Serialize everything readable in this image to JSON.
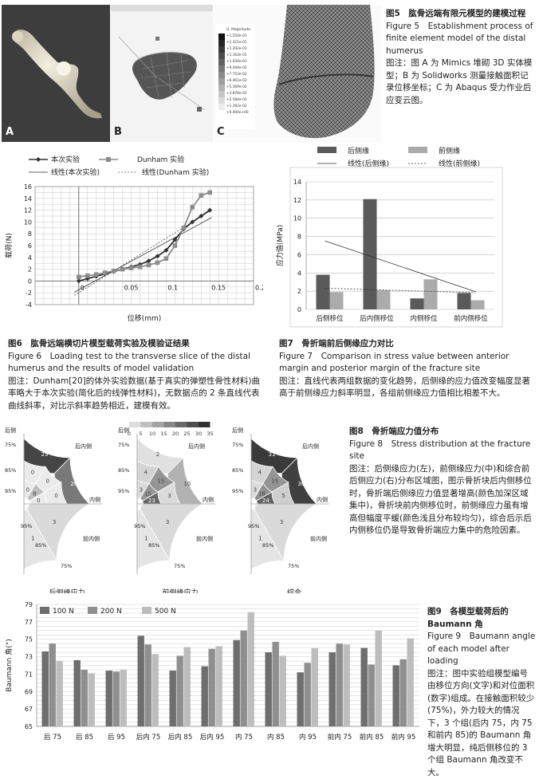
{
  "fig5": {
    "panel_labels": [
      "A",
      "B",
      "C"
    ],
    "caption_cn": "图5　肱骨远端有限元模型的建模过程",
    "caption_en": "Figure 5　Establishment process of finite element model of the distal humerus",
    "note": "图注：图 A 为 Mimics 堆砌 3D 实体模型；B 为 Solidworks 测量接触面积记录位移坐标；C 为 Abaqus 受力作业后应变云图。",
    "colorbar_title": "U, Magnitude",
    "colorbar_values": [
      "+1.550e-01",
      "+1.421e-01",
      "+1.292e-01",
      "+1.163e-01",
      "+1.034e-01",
      "+9.044e-02",
      "+7.753e-02",
      "+6.461e-02",
      "+5.169e-02",
      "+3.876e-02",
      "+2.584e-02",
      "+1.292e-02",
      "+0.000e+00"
    ]
  },
  "fig6": {
    "caption_cn": "图6　肱骨远端横切片模型载荷实验及模验证结果",
    "caption_en": "Figure 6　Loading test to the transverse slice of the distal humerus and the results of model validation",
    "note": "图注：Dunham[20]的体外实验数据(基于真实的弹塑性骨性材料)曲率略大于本次实验(简化后的线弹性材料)，无数据点的 2 条直线代表曲线斜率，对比示斜率趋势相近，建模有效。"
  },
  "fig7": {
    "caption_cn": "图7　骨折端前后侧缘应力对比",
    "caption_en": "Figure 7　Comparison in stress value between anterior margin and posterior margin of the fracture site",
    "note": "图注：直线代表两组数据的变化趋势，后侧缘的应力值改变幅度显著高于前侧缘应力斜率明显，各组前侧缘应力值相比相差不大。"
  },
  "fig8": {
    "caption_cn": "图8　骨折端应力值分布",
    "caption_en": "Figure 8　Stress distribution at the fracture site",
    "note": "图注：后侧缘应力(左)，前侧缘应力(中)和综合前后侧应力(右)分布区域图，图示骨折块后内侧移位时，骨折端后侧缘应力值显著增高(颜色加深区域集中)，骨折块前内侧移位时，前侧缘应力虽有增高但幅度平缓(颜色浅且分布较均匀)，综合后示后内侧移位仍是导致骨折端应力集中的危险因素。",
    "scale": [
      "0",
      "5",
      "10",
      "15",
      "20",
      "25",
      "30",
      "35"
    ],
    "edge_labels": {
      "back": "后侧",
      "back_inner": "后内侧",
      "inner": "内侧",
      "front_inner": "前内侧",
      "p75": "75%",
      "p85": "85%",
      "p95": "95%"
    },
    "panels": [
      {
        "title": "后侧缘应力",
        "outer": [
          "29",
          "20"
        ],
        "mid": [
          "0",
          "0",
          "0"
        ],
        "inner": [
          "0",
          "8",
          "0"
        ],
        "low": [
          "3",
          "1"
        ]
      },
      {
        "title": "前侧缘应力",
        "outer": [
          "2",
          "10"
        ],
        "mid": [
          "4",
          "15",
          "3"
        ],
        "inner": [
          "3",
          "15",
          "23"
        ],
        "low": [
          "3",
          "1"
        ]
      },
      {
        "title": "综合",
        "outer": [
          "31",
          "30"
        ],
        "mid": [
          "4",
          "15",
          "5"
        ],
        "inner": [
          "3",
          "16",
          "24"
        ],
        "low": [
          "3",
          "1"
        ]
      }
    ]
  },
  "fig9": {
    "caption_cn": "图9　各模型载荷后的 Baumann 角",
    "caption_en": "Figure 9　Baumann angle of each model after loading",
    "note": "图注：图中实验组模型编号由移位方向(文字)和对位面积(数字)组成。在接触面积较少(75%)，外力较大的情况下，3 个组(后内 75，内 75 和前内 85)的 Baumann 角增大明显，纯后侧移位的 3 个组 Baumann 角改变不大。"
  },
  "chart_data": [
    {
      "type": "line",
      "xlabel": "位移(mm)",
      "ylabel": "载荷(N)",
      "xlim": [
        -0.05,
        0.2
      ],
      "ylim": [
        -4,
        16
      ],
      "xticks": [
        "0",
        "0.05",
        "0.1",
        "0.15",
        "0.2"
      ],
      "yticks": [
        "-4",
        "-2",
        "0",
        "2",
        "4",
        "6",
        "8",
        "10",
        "12",
        "14",
        "16"
      ],
      "legend": [
        "本次实验",
        "Dunham 实验",
        "线性(本次实验)",
        "线性(Dunham 实验)"
      ],
      "series": [
        {
          "name": "本次实验",
          "x": [
            0,
            0.01,
            0.02,
            0.03,
            0.04,
            0.05,
            0.06,
            0.07,
            0.08,
            0.09,
            0.1,
            0.11,
            0.12,
            0.13,
            0.14,
            0.15
          ],
          "y": [
            0,
            0.4,
            0.8,
            1.2,
            1.6,
            2.0,
            2.4,
            2.8,
            3.4,
            4.2,
            5.2,
            7.0,
            8.8,
            10.0,
            11.0,
            12.0
          ]
        },
        {
          "name": "Dunham 实验",
          "x": [
            0,
            0.01,
            0.02,
            0.03,
            0.04,
            0.05,
            0.06,
            0.07,
            0.08,
            0.09,
            0.1,
            0.11,
            0.12,
            0.13,
            0.14,
            0.15
          ],
          "y": [
            0.7,
            0.9,
            1.1,
            1.4,
            1.7,
            2.0,
            2.2,
            2.4,
            2.7,
            3.1,
            3.8,
            6.0,
            9.0,
            12.5,
            14.5,
            15.0
          ]
        }
      ]
    },
    {
      "type": "bar",
      "ylabel": "应力值(MPa)",
      "ylim": [
        0,
        14
      ],
      "yticks": [
        "0",
        "2",
        "4",
        "6",
        "8",
        "10",
        "12",
        "14"
      ],
      "categories": [
        "后侧移位",
        "后内侧移位",
        "内侧移位",
        "前内侧移位"
      ],
      "legend": [
        "后侧缘",
        "前侧缘",
        "线性(后侧缘)",
        "线性(前侧缘)"
      ],
      "series": [
        {
          "name": "后侧缘",
          "values": [
            3.8,
            12.1,
            1.2,
            1.8
          ]
        },
        {
          "name": "前侧缘",
          "values": [
            1.9,
            2.1,
            3.3,
            1.0
          ]
        }
      ]
    },
    {
      "type": "bar",
      "ylabel": "Baumann 角(°)",
      "ylim": [
        65,
        79
      ],
      "yticks": [
        "65",
        "67",
        "69",
        "71",
        "73",
        "75",
        "77",
        "79"
      ],
      "categories": [
        "后 75",
        "后 85",
        "后 95",
        "后内 75",
        "后内 85",
        "后内 95",
        "内 75",
        "内 85",
        "内 95",
        "前内 75",
        "前内 85",
        "前内 95"
      ],
      "series": [
        {
          "name": "100 N",
          "values": [
            73.6,
            72.6,
            71.4,
            75.4,
            71.4,
            71.9,
            74.9,
            73.5,
            71.2,
            73.5,
            74.0,
            72.0
          ]
        },
        {
          "name": "200 N",
          "values": [
            74.5,
            71.5,
            71.3,
            74.4,
            73.1,
            73.9,
            76.0,
            74.7,
            72.3,
            74.5,
            72.1,
            72.7
          ]
        },
        {
          "name": "500 N",
          "values": [
            72.5,
            71.1,
            71.5,
            73.3,
            74.1,
            74.2,
            78.1,
            73.1,
            74.0,
            74.4,
            76.0,
            75.1
          ]
        }
      ]
    }
  ]
}
